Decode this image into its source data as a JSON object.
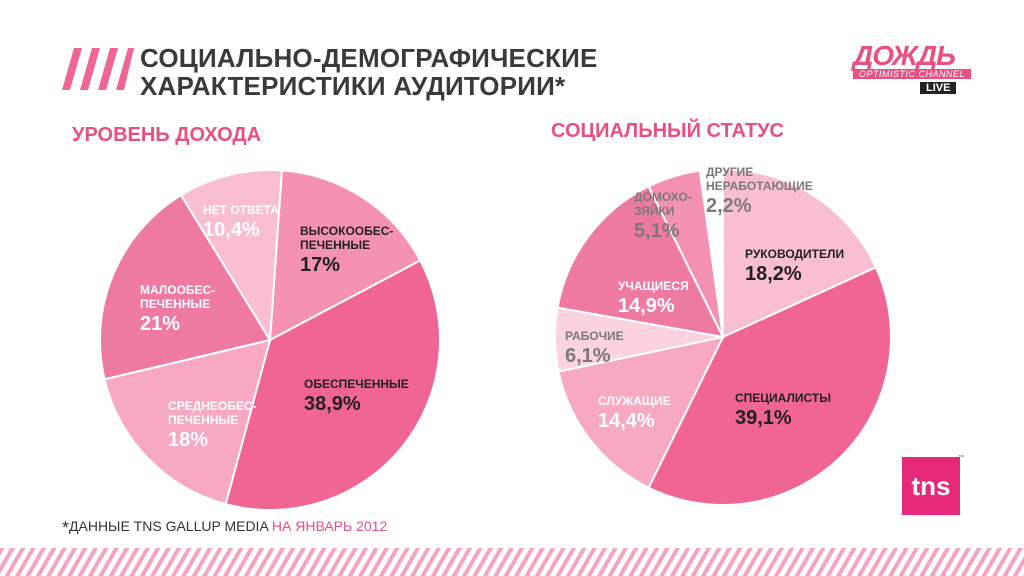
{
  "title": [
    "СОЦИАЛЬНО-ДЕМОГРАФИЧЕСКИЕ",
    "ХАРАКТЕРИСТИКИ АУДИТОРИИ*"
  ],
  "logo": {
    "name": "ДОЖДЬ",
    "tagline": "OPTIMISTIC CHANNEL",
    "live": "LIVE"
  },
  "tns_logo": "tns",
  "tns_tm": "™",
  "footnote": {
    "star": "*",
    "main": "ДАННЫЕ TNS GALLUP MEDIA ",
    "date": "НА ЯНВАРЬ 2012"
  },
  "colors": {
    "accent": "#e8507f",
    "pink_dark": "#f06591",
    "pink_mid": "#f592b1",
    "pink_light": "#f9bfd0"
  },
  "chart_data": [
    {
      "type": "pie",
      "title": "УРОВЕНЬ ДОХОДА",
      "slices": [
        {
          "name": [
            "ВЫСОКООБЕС-",
            "ПЕЧЕННЫЕ"
          ],
          "label": "17%",
          "value": 17.0,
          "color": "#f592b1",
          "text_color": "#222222"
        },
        {
          "name": [
            "ОБЕСПЕЧЕННЫЕ"
          ],
          "label": "38,9%",
          "value": 38.9,
          "color": "#f06591",
          "text_color": "#222222"
        },
        {
          "name": [
            "СРЕДНЕОБЕС-",
            "ПЕЧЕННЫЕ"
          ],
          "label": "18%",
          "value": 18.0,
          "color": "#f7a9c1",
          "text_color": "#ffffff"
        },
        {
          "name": [
            "МАЛООБЕС-",
            "ПЕЧЕННЫЕ"
          ],
          "label": "21%",
          "value": 21.0,
          "color": "#ee7aa1",
          "text_color": "#ffffff"
        },
        {
          "name": [
            "НЕТ ОТВЕТА"
          ],
          "label": "10,4%",
          "value": 10.4,
          "color": "#f9bfd0",
          "text_color": "#ffffff"
        }
      ]
    },
    {
      "type": "pie",
      "title": "СОЦИАЛЬНЫЙ СТАТУС",
      "slices": [
        {
          "name": [
            "РУКОВОДИТЕЛИ"
          ],
          "label": "18,2%",
          "value": 18.2,
          "color": "#f9bfd0",
          "text_color": "#222222"
        },
        {
          "name": [
            "СПЕЦИАЛИСТЫ"
          ],
          "label": "39,1%",
          "value": 39.1,
          "color": "#f06591",
          "text_color": "#222222"
        },
        {
          "name": [
            "СЛУЖАЩИЕ"
          ],
          "label": "14,4%",
          "value": 14.4,
          "color": "#f7a9c1",
          "text_color": "#ffffff"
        },
        {
          "name": [
            "РАБОЧИЕ"
          ],
          "label": "6,1%",
          "value": 6.1,
          "color": "#fbd3df",
          "text_color": "#7a7a7a"
        },
        {
          "name": [
            "УЧАЩИЕСЯ"
          ],
          "label": "14,9%",
          "value": 14.9,
          "color": "#ee7aa1",
          "text_color": "#ffffff"
        },
        {
          "name": [
            "ДОМОХО-",
            "ЗЯЙКИ"
          ],
          "label": "5,1%",
          "value": 5.1,
          "color": "#f592b1",
          "text_color": "#7a7a7a"
        },
        {
          "name": [
            "ДРУГИЕ",
            "НЕРАБОТАЮЩИЕ"
          ],
          "label": "2,2%",
          "value": 2.2,
          "color": "#ffffff",
          "text_color": "#7a7a7a"
        }
      ]
    }
  ]
}
